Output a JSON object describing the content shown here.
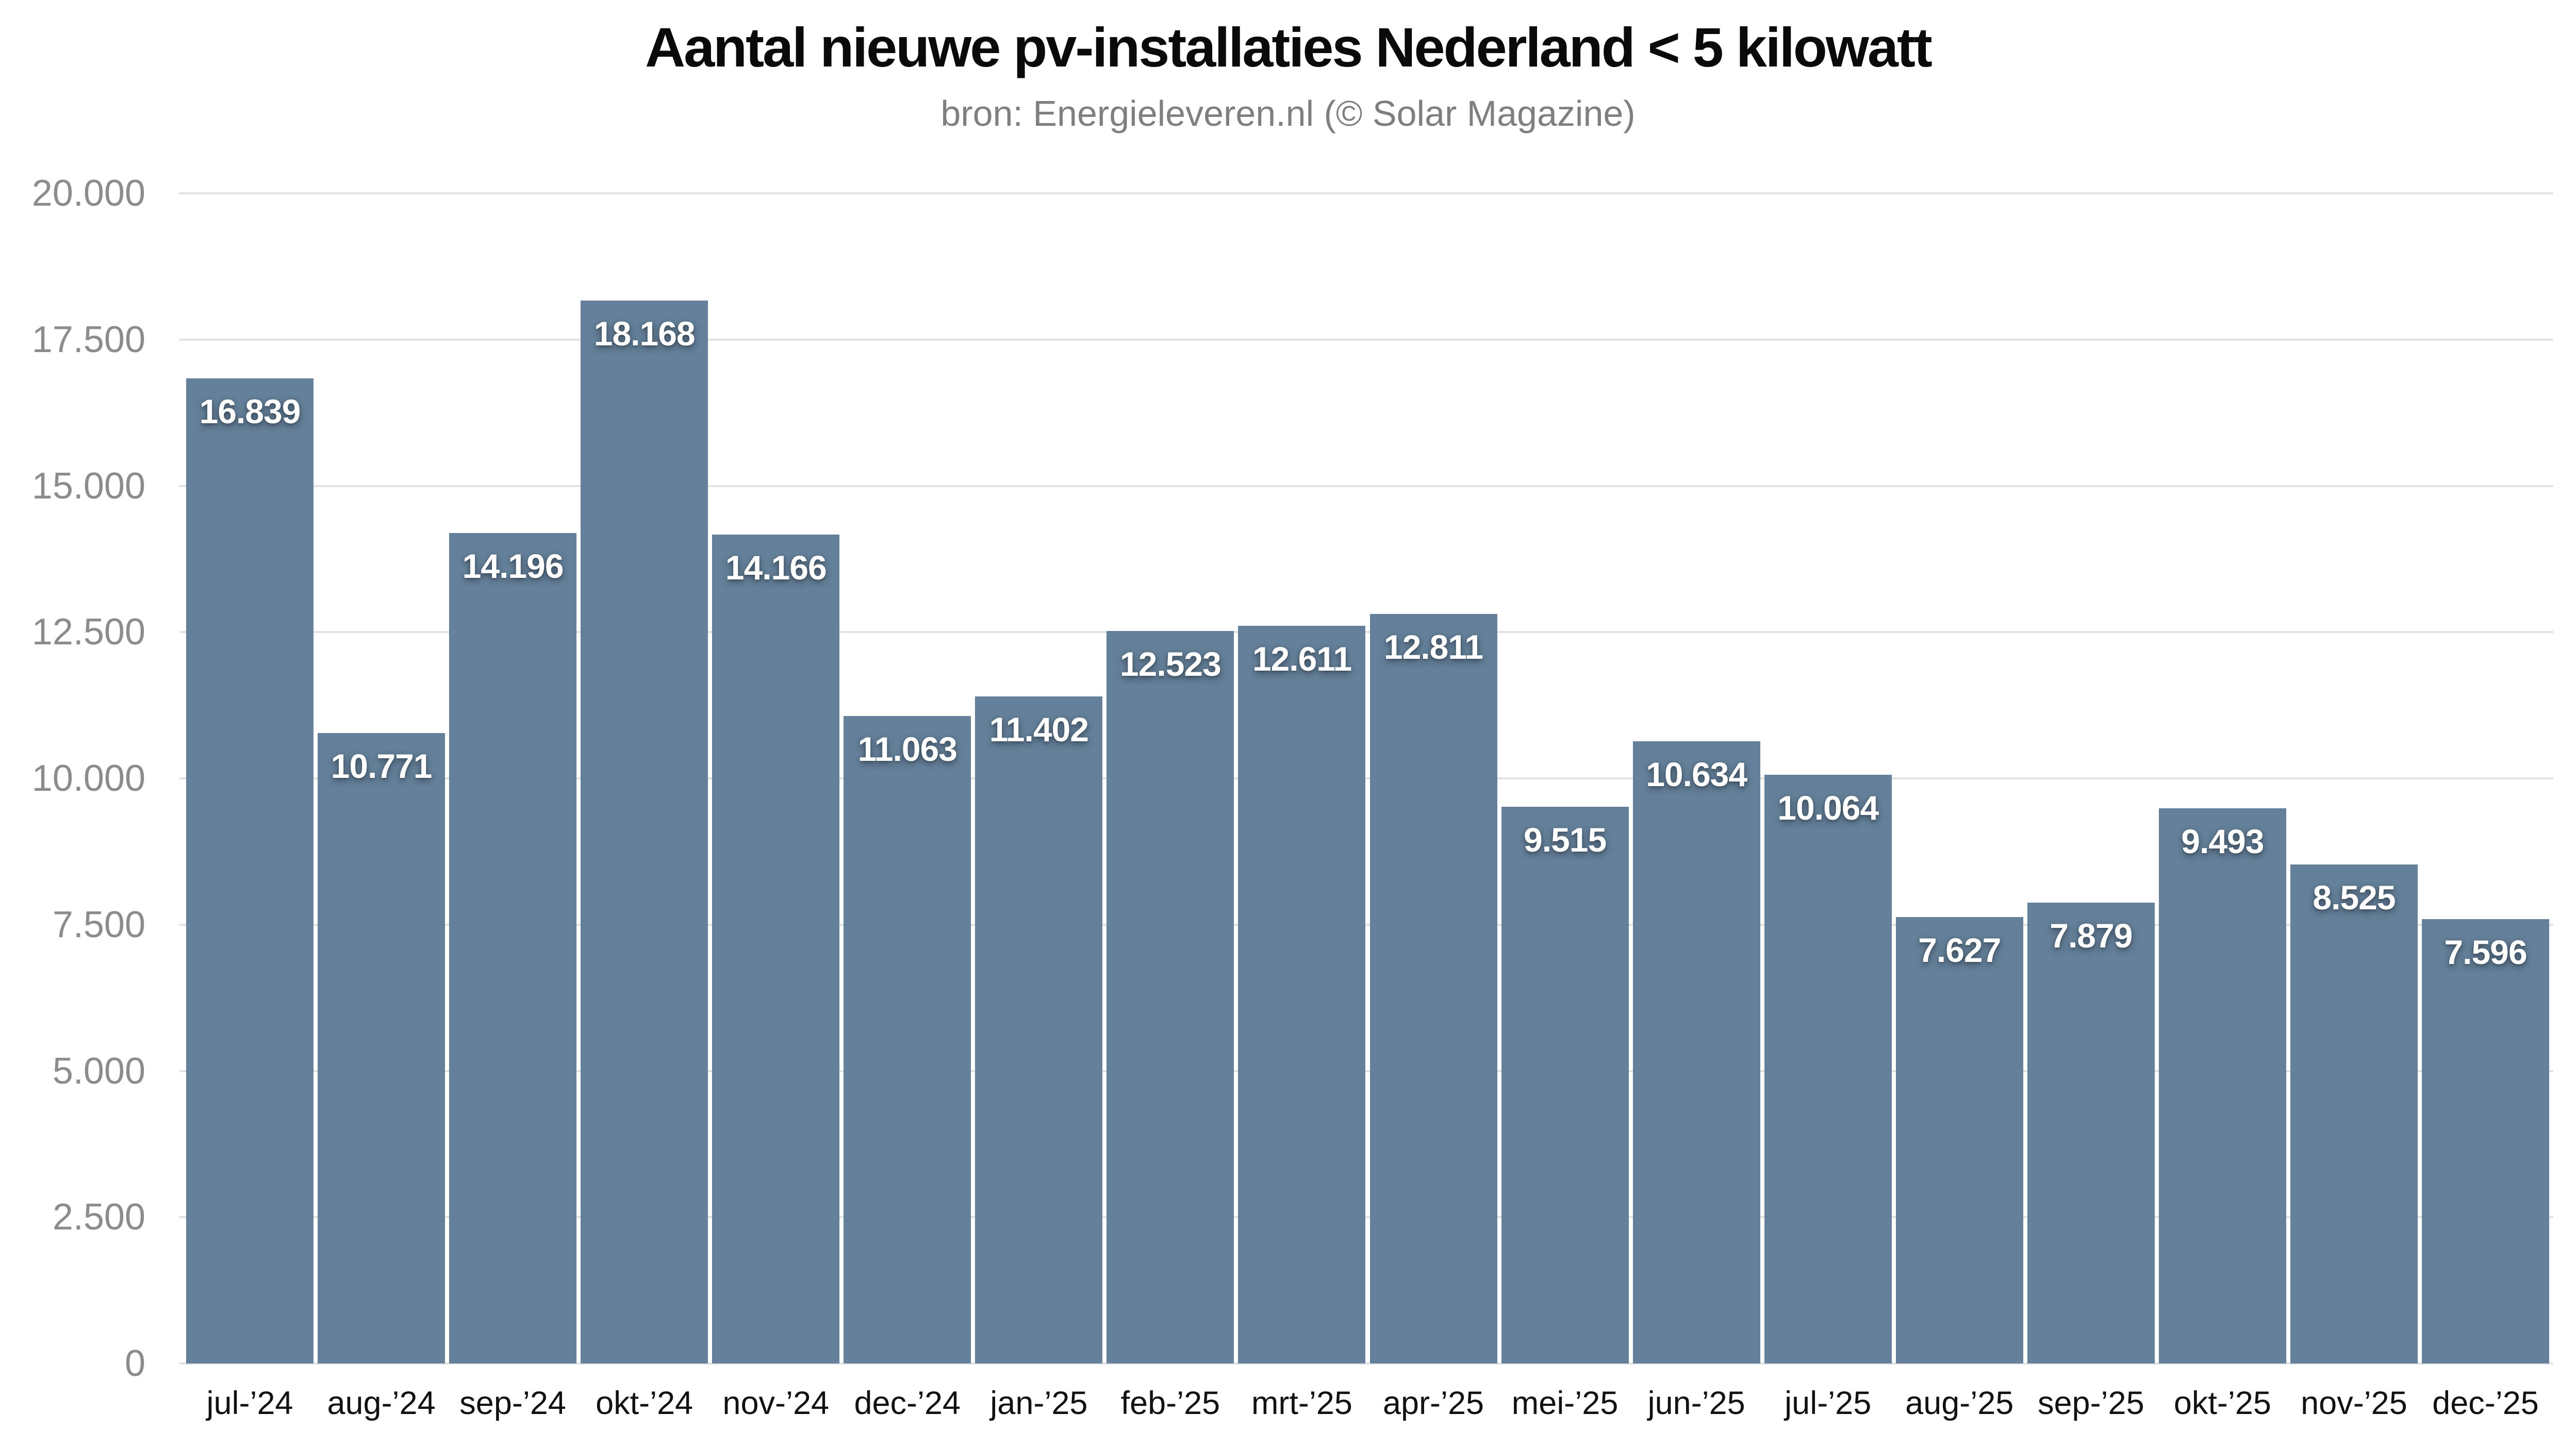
{
  "title": "Aantal nieuwe pv-installaties Nederland < 5 kilowatt",
  "subtitle": "bron: Energieleveren.nl (© Solar Magazine)",
  "colors": {
    "bar": "#64809a",
    "gridline": "#e2e2e2",
    "y_tick_label": "#8c8c8c",
    "x_tick_label": "#111111",
    "value_label": "#ffffff",
    "title": "#0a0a0a",
    "subtitle": "#7f7f7f",
    "background": "#ffffff"
  },
  "chart_data": {
    "type": "bar",
    "title": "Aantal nieuwe pv-installaties Nederland < 5 kilowatt",
    "subtitle": "bron: Energieleveren.nl (© Solar Magazine)",
    "xlabel": "",
    "ylabel": "",
    "categories": [
      "jul-’24",
      "aug-’24",
      "sep-’24",
      "okt-’24",
      "nov-’24",
      "dec-’24",
      "jan-’25",
      "feb-’25",
      "mrt-’25",
      "apr-’25",
      "mei-’25",
      "jun-’25",
      "jul-’25",
      "aug-’25",
      "sep-’25",
      "okt-’25",
      "nov-’25",
      "dec-’25"
    ],
    "values": [
      16839,
      10771,
      14196,
      18168,
      14166,
      11063,
      11402,
      12523,
      12611,
      12811,
      9515,
      10634,
      10064,
      7627,
      7879,
      9493,
      8525,
      7596
    ],
    "value_labels": [
      "16.839",
      "10.771",
      "14.196",
      "18.168",
      "14.166",
      "11.063",
      "11.402",
      "12.523",
      "12.611",
      "12.811",
      "9.515",
      "10.634",
      "10.064",
      "7.627",
      "7.879",
      "9.493",
      "8.525",
      "7.596"
    ],
    "ylim": [
      0,
      20000
    ],
    "ytick_step": 2500,
    "yticks": [
      0,
      2500,
      5000,
      7500,
      10000,
      12500,
      15000,
      17500,
      20000
    ],
    "ytick_labels": [
      "0",
      "2.500",
      "5.000",
      "7.500",
      "10.000",
      "12.500",
      "15.000",
      "17.500",
      "20.000"
    ],
    "grid": true,
    "legend": false,
    "bar_value_labels_inside_top": true
  }
}
